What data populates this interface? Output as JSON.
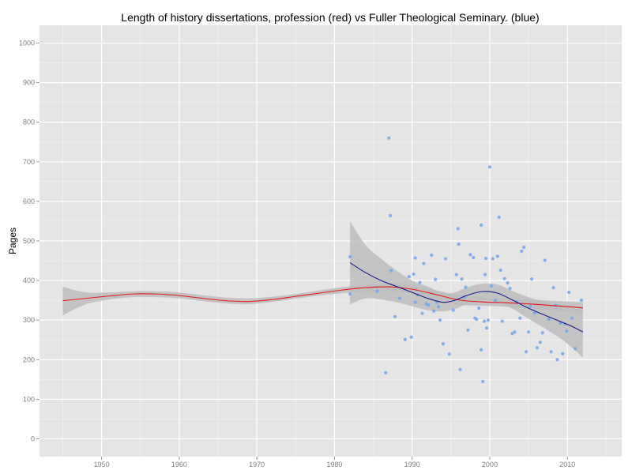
{
  "chart_data": {
    "type": "scatter",
    "title": "Length of history dissertations, profession (red) vs Fuller Theological Seminary. (blue)",
    "xlabel": "",
    "ylabel": "Pages",
    "xlim": [
      1942,
      2017
    ],
    "ylim": [
      -45,
      1045
    ],
    "xticks": [
      1950,
      1960,
      1970,
      1980,
      1990,
      2000,
      2010
    ],
    "yticks": [
      0,
      100,
      200,
      300,
      400,
      500,
      600,
      700,
      800,
      900,
      1000
    ],
    "grid": true,
    "colors": {
      "panel": "#e5e5e5",
      "grid_major": "#ffffff",
      "grid_minor": "#f2f2f2",
      "points": "#7aa6e8",
      "red_line": "#e31a1c",
      "blue_line": "#1c1c8c",
      "ribbon": "#bdbdbd",
      "tick_label": "#7f7f7f"
    },
    "series": [
      {
        "type": "scatter",
        "x": [
          1982,
          1982,
          1985.5,
          1986.6,
          1987,
          1987.2,
          1987.3,
          1987.8,
          1988.4,
          1989.1,
          1989.6,
          1989.9,
          1990.2,
          1990.4,
          1990.4,
          1990.7,
          1991,
          1991.3,
          1991.5,
          1991.8,
          1992.1,
          1992.5,
          1992.8,
          1993,
          1993.2,
          1993.4,
          1993.6,
          1994,
          1994.3,
          1994.8,
          1995.3,
          1995.7,
          1995.9,
          1996,
          1996.2,
          1996.4,
          1996.7,
          1996.9,
          1997.2,
          1997.5,
          1997.9,
          1998.1,
          1998.3,
          1998.6,
          1998.9,
          1998.9,
          1999.1,
          1999.3,
          1999.4,
          1999.5,
          1999.6,
          1999.8,
          2000,
          2000.2,
          2000.4,
          2000.7,
          2001,
          2001.2,
          2001.4,
          2001.6,
          2001.9,
          2002.3,
          2002.6,
          2002.9,
          2003.2,
          2003.5,
          2003.9,
          2004.1,
          2004.4,
          2004.7,
          2005,
          2005.2,
          2005.4,
          2005.8,
          2006.1,
          2006.5,
          2006.8,
          2007.1,
          2007.6,
          2007.9,
          2008.2,
          2008.5,
          2008.7,
          2009.1,
          2009.4,
          2009.7,
          2009.9,
          2010.2,
          2010.6,
          2011,
          2011.8
        ],
        "y": [
          460,
          366,
          373,
          167,
          760,
          564,
          425,
          309,
          355,
          251,
          410,
          257,
          416,
          457,
          345,
          364,
          395,
          317,
          443,
          341,
          338,
          464,
          323,
          403,
          345,
          334,
          300,
          240,
          455,
          214,
          325,
          415,
          531,
          492,
          175,
          404,
          358,
          383,
          275,
          465,
          458,
          305,
          302,
          330,
          540,
          225,
          145,
          297,
          415,
          456,
          280,
          300,
          687,
          386,
          455,
          350,
          461,
          560,
          426,
          297,
          405,
          394,
          380,
          266,
          270,
          346,
          305,
          474,
          484,
          220,
          270,
          335,
          404,
          318,
          230,
          244,
          268,
          451,
          302,
          220,
          382,
          337,
          200,
          292,
          215,
          290,
          272,
          370,
          305,
          228,
          350
        ]
      },
      {
        "type": "line",
        "x": [
          1945,
          1948,
          1951,
          1954,
          1957,
          1960,
          1963,
          1966,
          1969,
          1972,
          1975,
          1978,
          1981,
          1984,
          1987,
          1990,
          1993,
          1996,
          1999,
          2002,
          2005,
          2008,
          2010,
          2012
        ],
        "y": [
          349,
          355,
          361,
          366,
          366,
          362,
          355,
          349,
          347,
          352,
          360,
          368,
          376,
          382,
          384,
          378,
          365,
          351,
          346,
          344,
          341,
          337,
          334,
          331
        ],
        "ribbon_low": [
          312,
          340,
          352,
          358,
          358,
          355,
          348,
          342,
          340,
          346,
          354,
          362,
          368,
          372,
          373,
          367,
          353,
          339,
          336,
          334,
          330,
          325,
          321,
          317
        ],
        "ribbon_high": [
          384,
          370,
          370,
          373,
          373,
          370,
          363,
          357,
          355,
          359,
          366,
          375,
          383,
          389,
          392,
          389,
          376,
          363,
          357,
          354,
          352,
          349,
          347,
          345
        ]
      },
      {
        "type": "line",
        "x": [
          1982,
          1984,
          1986,
          1988,
          1990,
          1992,
          1994,
          1995.5,
          1997,
          1999,
          2001,
          2003,
          2005,
          2007,
          2009,
          2010.5,
          2012
        ],
        "y": [
          445,
          420,
          400,
          385,
          370,
          355,
          345,
          350,
          362,
          372,
          368,
          350,
          330,
          313,
          297,
          285,
          270
        ],
        "ribbon_low": [
          340,
          355,
          352,
          345,
          335,
          325,
          322,
          328,
          340,
          350,
          345,
          328,
          303,
          280,
          255,
          232,
          205
        ],
        "ribbon_high": [
          550,
          490,
          455,
          425,
          400,
          385,
          368,
          370,
          382,
          392,
          390,
          373,
          358,
          346,
          340,
          337,
          335
        ]
      }
    ]
  }
}
